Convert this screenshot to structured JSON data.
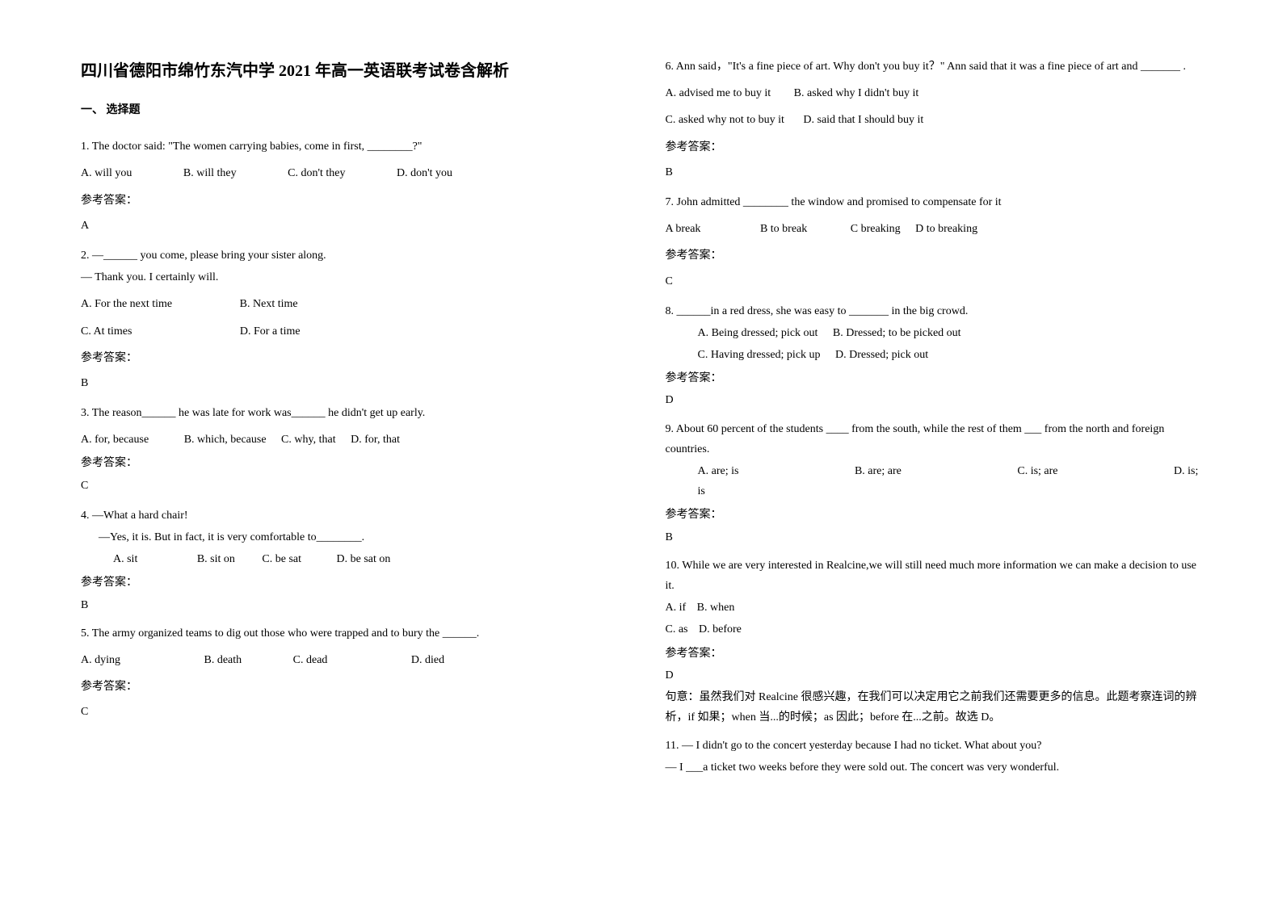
{
  "title": "四川省德阳市绵竹东汽中学 2021 年高一英语联考试卷含解析",
  "sectionTitle": "一、 选择题",
  "ansLabel": "参考答案：",
  "left": {
    "q1": {
      "stem": "1. The doctor said: \"The women carrying babies, come in first, ________?\"",
      "a": "A. will you",
      "b": "B. will they",
      "c": "C. don't they",
      "d": "D. don't you",
      "ans": "A"
    },
    "q2": {
      "stem": "2. —______ you come, please bring your sister along.",
      "stem2": "— Thank you. I certainly will.",
      "a": "A. For the next time",
      "b": "B. Next time",
      "c": "C. At times",
      "d": "D. For a time",
      "ans": "B"
    },
    "q3": {
      "stem": "3. The reason______ he was late for work was______ he didn't get up early.",
      "a": "A. for, because",
      "b": "B. which, because",
      "c": "C. why, that",
      "d": "D. for, that",
      "ans": "C"
    },
    "q4": {
      "stem": "4. —What a hard chair!",
      "stem2": "—Yes, it is. But in fact, it is very comfortable to________.",
      "a": "A. sit",
      "b": "B. sit on",
      "c": "C. be sat",
      "d": "D. be sat on",
      "ans": "B"
    },
    "q5": {
      "stem": "5. The army organized teams to dig out those who were trapped and to bury the ______.",
      "a": "A. dying",
      "b": "B. death",
      "c": "C. dead",
      "d": "D. died",
      "ans": "C"
    }
  },
  "right": {
    "q6": {
      "stem": "6. Ann said，\"It's a fine piece of art. Why don't you buy it？\" Ann said that it was a fine piece of art  and _______ .",
      "a": "A. advised me to buy it",
      "b": "B. asked why I didn't buy it",
      "c": "C. asked why not to buy it",
      "d": "D. said that I should buy it",
      "ans": "B"
    },
    "q7": {
      "stem": "7. John admitted ________ the window and promised to compensate for it",
      "a": "A break",
      "b": "B to break",
      "c": "C breaking",
      "d": "D to breaking",
      "ans": "C"
    },
    "q8": {
      "stem": "8. ______in a red dress, she was easy to _______ in the big crowd.",
      "a": "A. Being dressed; pick out",
      "b": "B. Dressed; to be picked out",
      "c": "C. Having dressed; pick up",
      "d": "D. Dressed; pick out",
      "ans": "D"
    },
    "q9": {
      "stem": "9. About 60 percent of the students ____ from the south, while the rest of them ___ from the north and foreign countries.",
      "a": "A. are; is",
      "b": "B. are; are",
      "c": "C. is; are",
      "d": "D. is; is",
      "ans": "B"
    },
    "q10": {
      "stem": "10. While we are very interested in Realcine,we will still need much more information   we can make a decision to use it.",
      "a": "A. if",
      "b": "B. when",
      "c": "C. as",
      "d": "D. before",
      "ans": "D",
      "explain": "句意：虽然我们对 Realcine 很感兴趣，在我们可以决定用它之前我们还需要更多的信息。此题考察连词的辨析，if 如果；when 当...的时候；as 因此；before 在...之前。故选 D。"
    },
    "q11": {
      "stem": "11. — I didn't go to the concert yesterday because I had no ticket. What about you?",
      "stem2": "— I ___a ticket two weeks before they were sold out. The concert was very wonderful."
    }
  }
}
